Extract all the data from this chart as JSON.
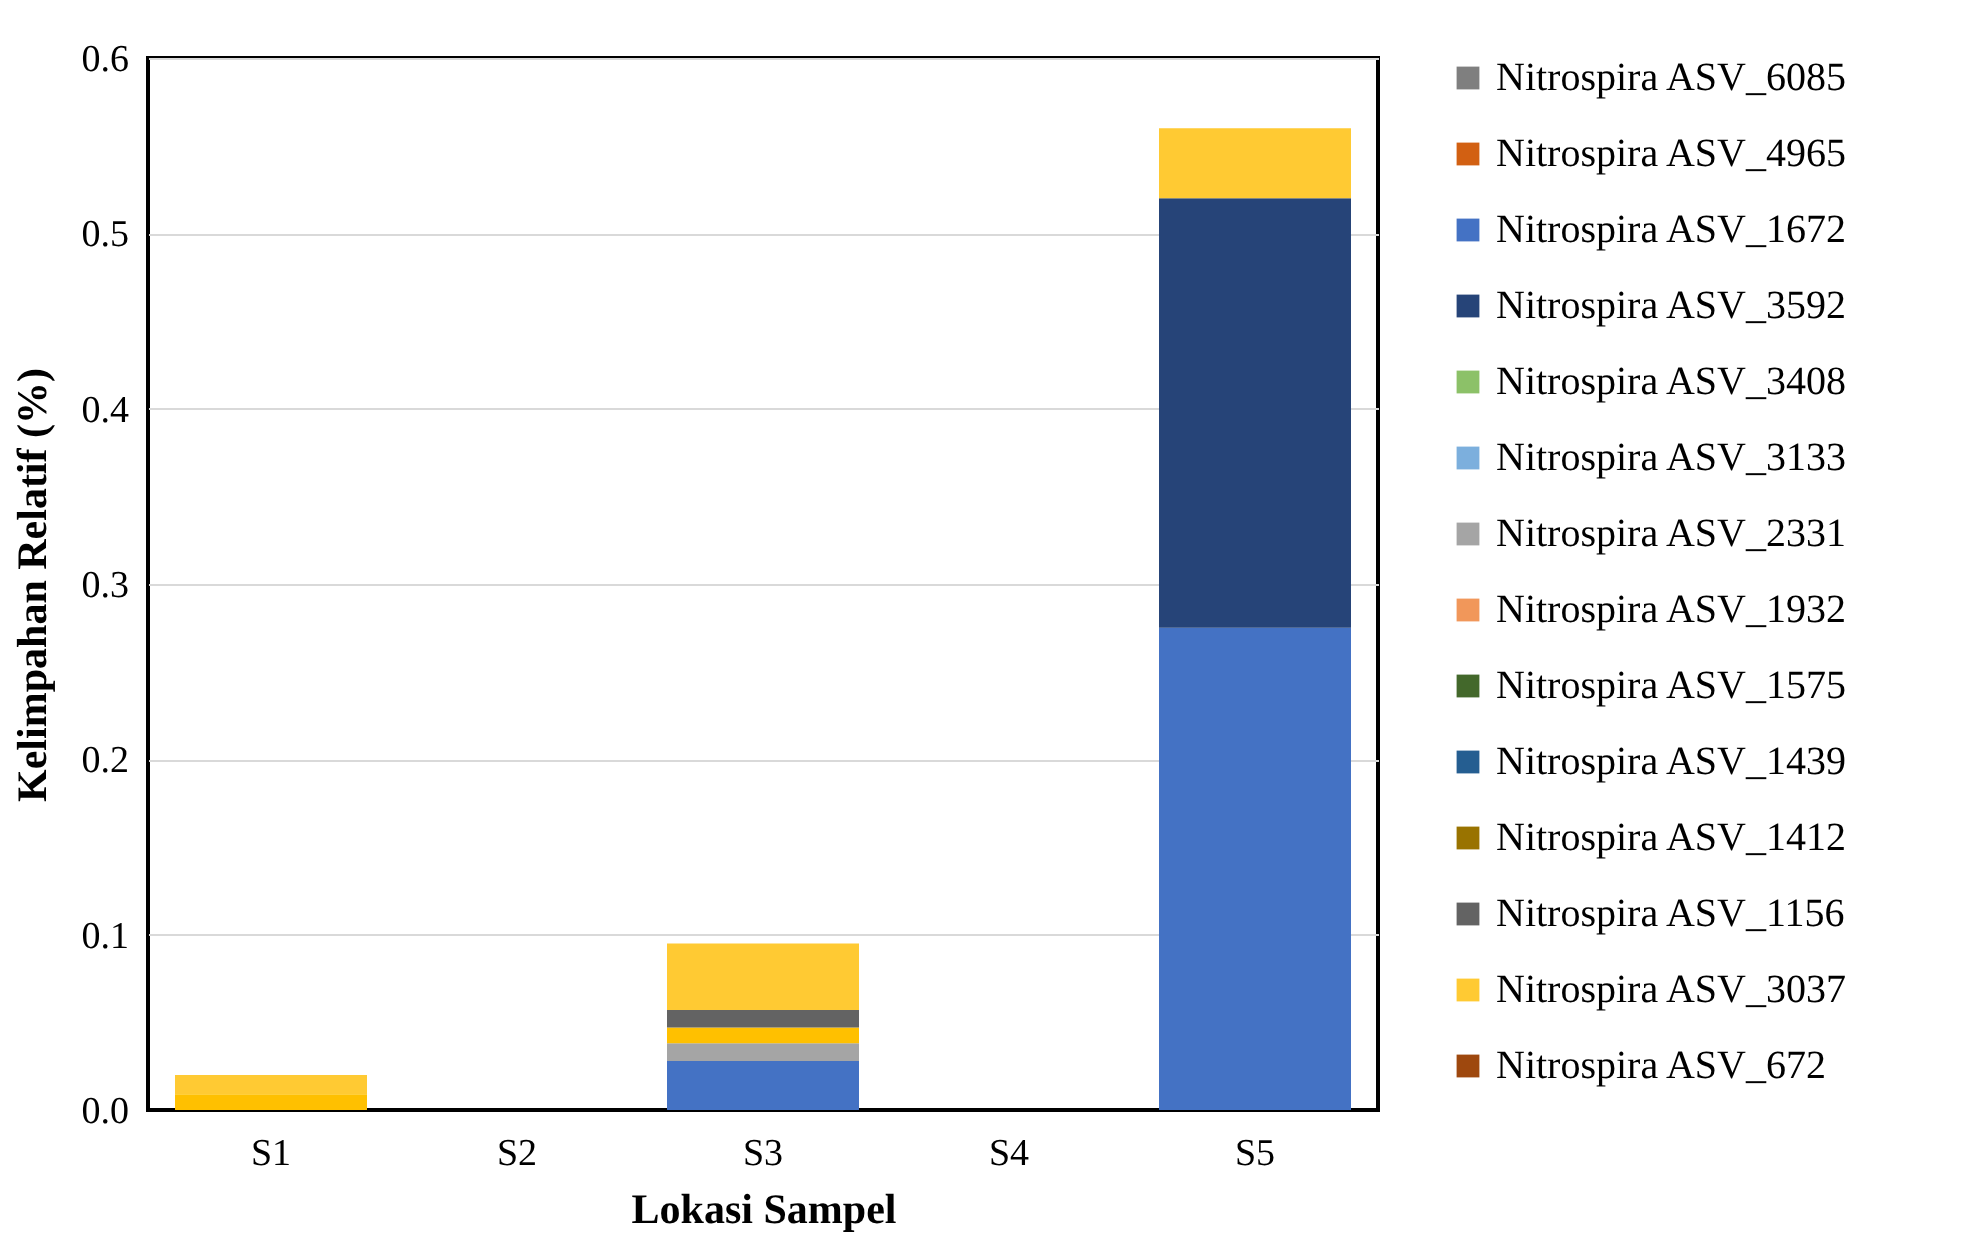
{
  "chart_data": {
    "type": "bar",
    "stacked": true,
    "xlabel": "Lokasi Sampel",
    "ylabel": "Kelimpahan Relatif (%)",
    "categories": [
      "S1",
      "S2",
      "S3",
      "S4",
      "S5"
    ],
    "ylim": [
      0,
      0.6
    ],
    "yticks": [
      {
        "value": 0,
        "label": "0.0"
      },
      {
        "value": 0.1,
        "label": "0.1"
      },
      {
        "value": 0.2,
        "label": "0.2"
      },
      {
        "value": 0.3,
        "label": "0.3"
      },
      {
        "value": 0.4,
        "label": "0.4"
      },
      {
        "value": 0.5,
        "label": "0.5"
      },
      {
        "value": 0.6,
        "label": "0.6"
      }
    ],
    "grid": "y",
    "legend": "right",
    "series": [
      {
        "name": "Nitrospira ASV_6085",
        "color": "#7f7f7f",
        "values": [
          0,
          0,
          0,
          0,
          0
        ]
      },
      {
        "name": "Nitrospira ASV_4965",
        "color": "#d26012",
        "values": [
          0,
          0,
          0,
          0,
          0
        ]
      },
      {
        "name": "Nitrospira ASV_1672",
        "color": "#4472c4",
        "values": [
          0,
          0,
          0.028,
          0,
          0.275
        ]
      },
      {
        "name": "Nitrospira ASV_3592",
        "color": "#264478",
        "values": [
          0,
          0,
          0,
          0,
          0.245
        ]
      },
      {
        "name": "Nitrospira ASV_3408",
        "color": "#8cc168",
        "values": [
          0,
          0,
          0,
          0,
          0
        ]
      },
      {
        "name": "Nitrospira ASV_3133",
        "color": "#7cafdd",
        "values": [
          0,
          0,
          0,
          0,
          0
        ]
      },
      {
        "name": "Nitrospira ASV_2331",
        "color": "#a5a5a5",
        "values": [
          0,
          0,
          0.01,
          0,
          0
        ]
      },
      {
        "color": "#ffc000",
        "values": [
          0.009,
          0,
          0.009,
          0,
          0
        ]
      },
      {
        "name": "Nitrospira ASV_1932",
        "color": "#f1975a",
        "values": [
          0,
          0,
          0,
          0,
          0
        ]
      },
      {
        "name": "Nitrospira ASV_1575",
        "color": "#43682b",
        "values": [
          0,
          0,
          0,
          0,
          0
        ]
      },
      {
        "name": "Nitrospira ASV_1439",
        "color": "#255e91",
        "values": [
          0,
          0,
          0,
          0,
          0
        ]
      },
      {
        "name": "Nitrospira ASV_1412",
        "color": "#997300",
        "values": [
          0,
          0,
          0,
          0,
          0
        ]
      },
      {
        "name": "Nitrospira ASV_1156",
        "color": "#636363",
        "values": [
          0,
          0,
          0.01,
          0,
          0
        ]
      },
      {
        "name": "Nitrospira ASV_3037",
        "color": "#ffca33",
        "values": [
          0.011,
          0,
          0.038,
          0,
          0.04
        ]
      },
      {
        "name": "Nitrospira ASV_672",
        "color": "#9e480e",
        "values": [
          0,
          0,
          0,
          0,
          0
        ]
      }
    ]
  }
}
